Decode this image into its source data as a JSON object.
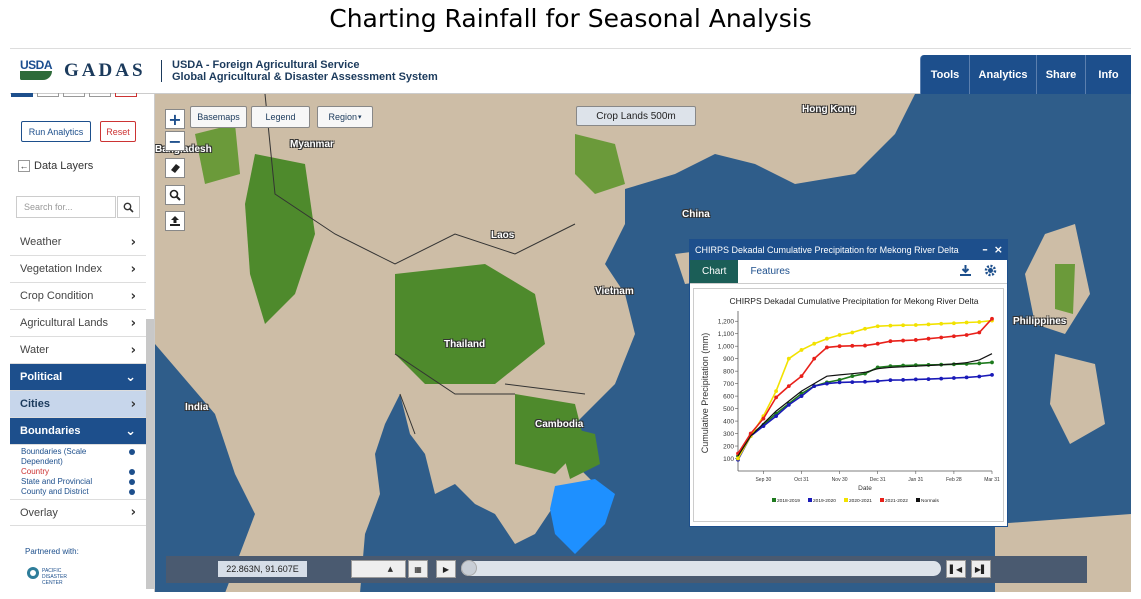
{
  "slide_title": "Charting Rainfall for Seasonal Analysis",
  "header": {
    "logo_text": "USDA",
    "app_name": "GADAS",
    "agency_line1": "USDA - Foreign Agricultural Service",
    "agency_line2": "Global Agricultural & Disaster Assessment System",
    "nav": [
      "Tools",
      "Analytics",
      "Share",
      "Info"
    ]
  },
  "sidebar": {
    "run_analytics": "Run Analytics",
    "reset": "Reset",
    "data_layers": "Data Layers",
    "search_placeholder": "Search for...",
    "menu": [
      "Weather",
      "Vegetation Index",
      "Crop Condition",
      "Agricultural Lands",
      "Water"
    ],
    "political": "Political",
    "cities": "Cities",
    "boundaries": "Boundaries",
    "boundary_items": [
      "Boundaries (Scale Dependent)",
      "Country",
      "State and Provincial",
      "County and District"
    ],
    "overlay": "Overlay",
    "partnered_with": "Partnered with:",
    "partner_logo": "PACIFIC DISASTER CENTER"
  },
  "map": {
    "basemaps": "Basemaps",
    "legend": "Legend",
    "region": "Region",
    "layer_label": "Crop Lands 500m",
    "labels": {
      "hong_kong": "Hong Kong",
      "myanmar": "Myanmar",
      "bangladesh": "Bangladesh",
      "china": "China",
      "laos": "Laos",
      "vietnam": "Vietnam",
      "thailand": "Thailand",
      "india": "India",
      "cambodia": "Cambodia",
      "philippines": "Philippines"
    },
    "coordinates": "22.863N, 91.607E",
    "colors": {
      "ocean": "#2f5d8a",
      "land": "#cdbda6",
      "crop": "#4e8a2c",
      "highlight": "#1e90ff"
    }
  },
  "panel": {
    "title": "CHIRPS Dekadal Cumulative Precipitation for Mekong River Delta",
    "tab_chart": "Chart",
    "tab_features": "Features"
  },
  "chart_data": {
    "type": "line",
    "title": "CHIRPS Dekadal Cumulative Precipitation for Mekong River Delta",
    "xlabel": "Date",
    "ylabel": "Cumulative Precipitation (mm)",
    "ylim": [
      0,
      1250
    ],
    "yticks": [
      100,
      200,
      300,
      400,
      500,
      600,
      700,
      800,
      900,
      1000,
      1100,
      1200
    ],
    "ytick_labels": [
      "100",
      "200",
      "300",
      "400",
      "500",
      "600",
      "700",
      "800",
      "900",
      "1,000",
      "1,100",
      "1,200"
    ],
    "x_tick_index": [
      2,
      5,
      8,
      11,
      14,
      17,
      20
    ],
    "x_tick_labels": [
      "Sep 30",
      "Oct 31",
      "Nov 30",
      "Dec 31",
      "Jan 31",
      "Feb 28",
      "Mar 31"
    ],
    "n_points": 21,
    "series": [
      {
        "name": "2018-2019",
        "color": "#1e7a1e",
        "values": [
          120,
          290,
          370,
          460,
          540,
          620,
          680,
          710,
          730,
          760,
          780,
          830,
          840,
          845,
          848,
          850,
          852,
          855,
          858,
          862,
          870
        ]
      },
      {
        "name": "2019-2020",
        "color": "#1a1ab8",
        "values": [
          90,
          280,
          360,
          440,
          530,
          600,
          680,
          700,
          710,
          712,
          715,
          720,
          728,
          730,
          734,
          736,
          740,
          745,
          750,
          757,
          770
        ]
      },
      {
        "name": "2020-2021",
        "color": "#f2e200",
        "values": [
          100,
          280,
          440,
          640,
          900,
          970,
          1020,
          1060,
          1090,
          1110,
          1140,
          1160,
          1165,
          1168,
          1170,
          1175,
          1180,
          1184,
          1190,
          1194,
          1205
        ]
      },
      {
        "name": "2021-2022",
        "color": "#e8201a",
        "values": [
          140,
          300,
          420,
          590,
          680,
          760,
          900,
          990,
          1000,
          1003,
          1005,
          1020,
          1040,
          1045,
          1050,
          1060,
          1070,
          1080,
          1090,
          1110,
          1220
        ]
      },
      {
        "name": "Normals",
        "color": "#111111",
        "values": [
          120,
          280,
          380,
          480,
          560,
          640,
          700,
          760,
          770,
          780,
          790,
          820,
          830,
          835,
          840,
          845,
          850,
          858,
          868,
          890,
          940
        ]
      }
    ],
    "legend_position": "bottom"
  }
}
